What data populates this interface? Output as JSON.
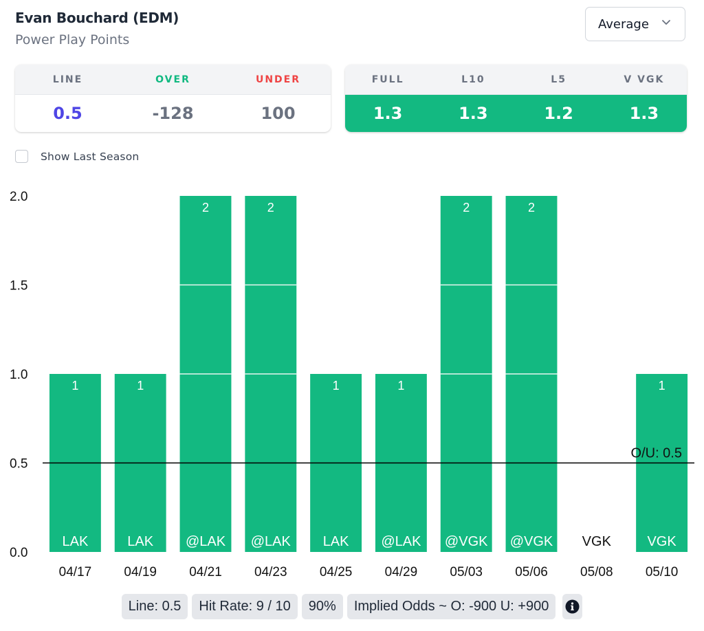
{
  "header": {
    "player": "Evan Bouchard (EDM)",
    "stat": "Power Play Points"
  },
  "dropdown": {
    "selected": "Average",
    "icon": "chevron-down-icon"
  },
  "odds_card": {
    "headers": [
      "LINE",
      "OVER",
      "UNDER"
    ],
    "values": [
      "0.5",
      "-128",
      "100"
    ],
    "header_colors": [
      "#6b7280",
      "#10b981",
      "#ef4444"
    ],
    "value_colors": [
      "#4f46e5",
      "#6b7280",
      "#6b7280"
    ]
  },
  "averages_card": {
    "headers": [
      "FULL",
      "L10",
      "L5",
      "V VGK"
    ],
    "values": [
      "1.3",
      "1.3",
      "1.2",
      "1.3"
    ],
    "accent": "#13b981"
  },
  "show_last_season": {
    "label": "Show Last Season",
    "checked": false
  },
  "chart_data": {
    "type": "bar",
    "title": "",
    "xlabel": "",
    "ylabel": "",
    "categories": [
      "04/17",
      "04/19",
      "04/21",
      "04/23",
      "04/25",
      "04/29",
      "05/03",
      "05/06",
      "05/08",
      "05/10"
    ],
    "opponents": [
      "LAK",
      "LAK",
      "@LAK",
      "@LAK",
      "LAK",
      "@LAK",
      "@VGK",
      "@VGK",
      "VGK",
      "VGK"
    ],
    "values": [
      1,
      1,
      2,
      2,
      1,
      1,
      2,
      2,
      0,
      1
    ],
    "ylim": [
      0,
      2
    ],
    "yticks": [
      "0.0",
      "0.5",
      "1.0",
      "1.5",
      "2.0"
    ],
    "ytick_values": [
      0,
      0.5,
      1.0,
      1.5,
      2.0
    ],
    "line": {
      "value": 0.5,
      "label": "O/U: 0.5"
    },
    "bar_color": "#13b981",
    "grid": false,
    "legend": "none"
  },
  "summary": {
    "line": "Line: 0.5",
    "hit_rate": "Hit Rate: 9 / 10",
    "pct": "90%",
    "implied_odds": "Implied Odds ~ O: -900 U: +900",
    "info_icon": "info-icon"
  }
}
